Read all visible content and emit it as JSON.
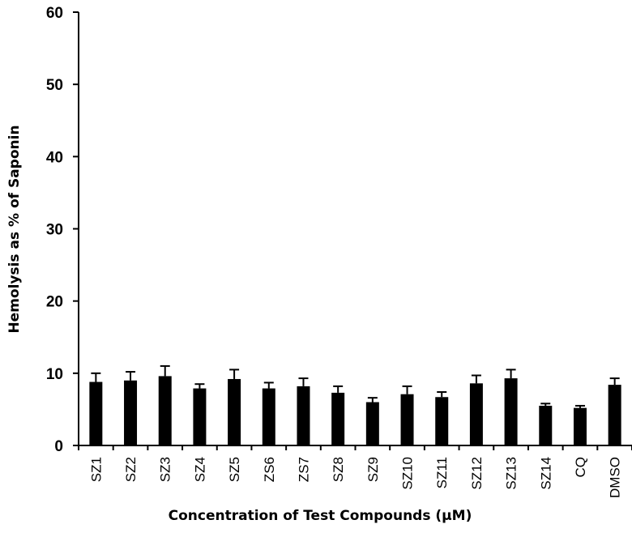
{
  "chart_data": {
    "type": "bar",
    "categories": [
      "SZ1",
      "SZ2",
      "SZ3",
      "SZ4",
      "SZ5",
      "ZS6",
      "ZS7",
      "SZ8",
      "SZ9",
      "SZ10",
      "SZ11",
      "SZ12",
      "SZ13",
      "SZ14",
      "CQ",
      "DMSO"
    ],
    "values": [
      8.8,
      9.0,
      9.6,
      7.9,
      9.2,
      7.9,
      8.2,
      7.3,
      6.0,
      7.1,
      6.7,
      8.6,
      9.3,
      5.5,
      5.2,
      8.4
    ],
    "error": [
      1.2,
      1.2,
      1.4,
      0.6,
      1.3,
      0.8,
      1.1,
      0.9,
      0.6,
      1.1,
      0.7,
      1.1,
      1.2,
      0.3,
      0.3,
      0.9
    ],
    "xlabel": "Concentration of Test Compounds (µM)",
    "ylabel": "Hemolysis as % of Saponin",
    "ylim": [
      0,
      60
    ],
    "yticks": [
      "0",
      "10",
      "20",
      "30",
      "40",
      "50",
      "60"
    ],
    "bar_color": "#000000",
    "grid": false,
    "legend": "none"
  }
}
